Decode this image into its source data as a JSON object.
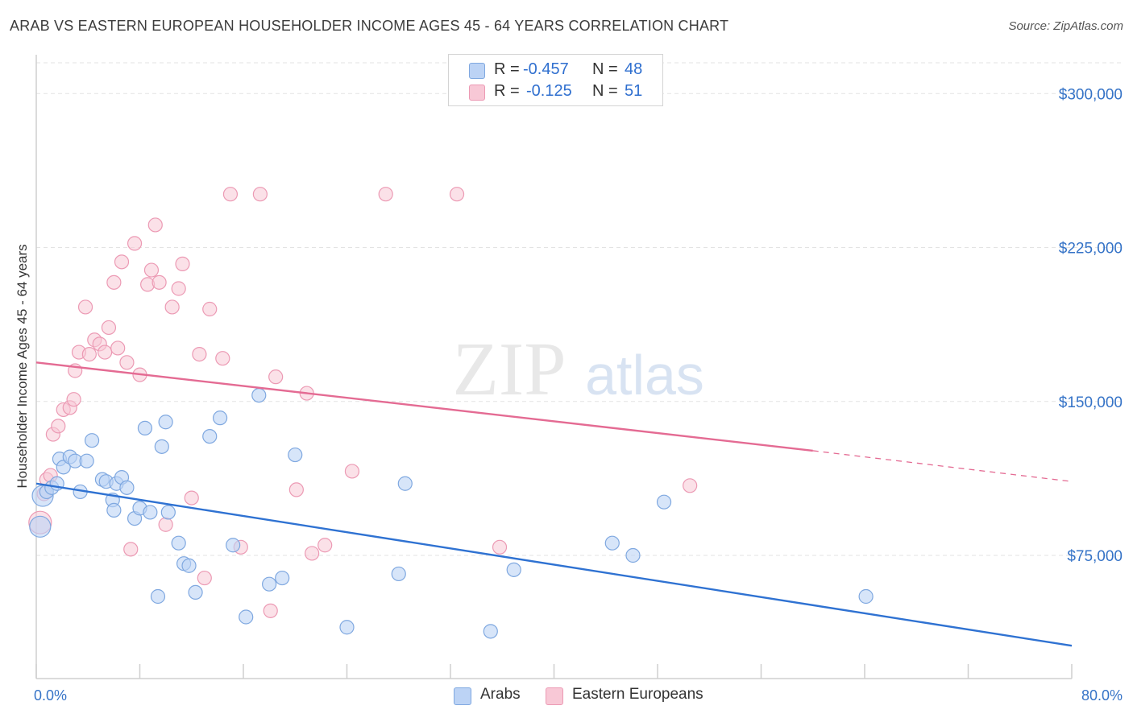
{
  "header": {
    "title": "ARAB VS EASTERN EUROPEAN HOUSEHOLDER INCOME AGES 45 - 64 YEARS CORRELATION CHART",
    "source": "Source: ZipAtlas.com"
  },
  "watermark": {
    "zip": "ZIP",
    "atlas": "atlas"
  },
  "legend": {
    "r_label": "R =",
    "n_label": "N =",
    "rows": [
      {
        "r": "-0.457",
        "n": "48"
      },
      {
        "r": "-0.125",
        "n": "51"
      }
    ]
  },
  "chart_data": {
    "type": "scatter",
    "title": "ARAB VS EASTERN EUROPEAN HOUSEHOLDER INCOME AGES 45 - 64 YEARS CORRELATION CHART",
    "xlabel": "",
    "ylabel": "Householder Income Ages 45 - 64 years",
    "xlim": [
      0,
      80
    ],
    "ylim": [
      15000,
      315000
    ],
    "x_tick_labels": [
      "0.0%",
      "80.0%"
    ],
    "y_ticks": [
      300000,
      225000,
      150000,
      75000
    ],
    "y_tick_labels": [
      "$300,000",
      "$225,000",
      "$150,000",
      "$75,000"
    ],
    "grid": true,
    "legend_position": "top-center",
    "colors": {
      "arabs_fill": "#bcd3f5",
      "arabs_stroke": "#7fa8e0",
      "arabs_line": "#2f72d2",
      "eastern_fill": "#f8c8d6",
      "eastern_stroke": "#ec9ab4",
      "eastern_line": "#e46b93",
      "tick_text": "#3573c7",
      "grid": "#e3e3e3"
    },
    "series": [
      {
        "name": "Arabs",
        "r": -0.457,
        "n": 48,
        "trend": {
          "x0": 0,
          "y0": 110000,
          "x1": 80,
          "y1": 31000
        },
        "points": [
          [
            0.3,
            89000
          ],
          [
            0.5,
            104000
          ],
          [
            0.8,
            106000
          ],
          [
            1.2,
            108000
          ],
          [
            1.6,
            110000
          ],
          [
            1.8,
            122000
          ],
          [
            2.1,
            118000
          ],
          [
            2.6,
            123000
          ],
          [
            3.0,
            121000
          ],
          [
            3.4,
            106000
          ],
          [
            3.9,
            121000
          ],
          [
            4.3,
            131000
          ],
          [
            5.1,
            112000
          ],
          [
            5.4,
            111000
          ],
          [
            5.9,
            102000
          ],
          [
            6.2,
            110000
          ],
          [
            6.6,
            113000
          ],
          [
            7.0,
            108000
          ],
          [
            7.6,
            93000
          ],
          [
            8.0,
            98000
          ],
          [
            8.4,
            137000
          ],
          [
            8.8,
            96000
          ],
          [
            9.4,
            55000
          ],
          [
            9.7,
            128000
          ],
          [
            10.2,
            96000
          ],
          [
            11.0,
            81000
          ],
          [
            11.4,
            71000
          ],
          [
            11.8,
            70000
          ],
          [
            12.3,
            57000
          ],
          [
            13.4,
            133000
          ],
          [
            14.2,
            142000
          ],
          [
            15.2,
            80000
          ],
          [
            16.2,
            45000
          ],
          [
            17.2,
            153000
          ],
          [
            18.0,
            61000
          ],
          [
            19.0,
            64000
          ],
          [
            20.0,
            124000
          ],
          [
            24.0,
            40000
          ],
          [
            28.0,
            66000
          ],
          [
            28.5,
            110000
          ],
          [
            35.1,
            38000
          ],
          [
            36.9,
            68000
          ],
          [
            44.5,
            81000
          ],
          [
            46.1,
            75000
          ],
          [
            48.5,
            101000
          ],
          [
            64.1,
            55000
          ],
          [
            10.0,
            140000
          ],
          [
            6.0,
            97000
          ]
        ]
      },
      {
        "name": "Eastern Europeans",
        "r": -0.125,
        "n": 51,
        "trend": {
          "x0": 0,
          "y0": 169000,
          "x1": 60,
          "y1": 126000,
          "dash_to_x": 80,
          "dash_to_y": 111000
        },
        "points": [
          [
            0.3,
            91000
          ],
          [
            0.8,
            112000
          ],
          [
            1.1,
            114000
          ],
          [
            1.3,
            134000
          ],
          [
            1.7,
            138000
          ],
          [
            2.1,
            146000
          ],
          [
            2.6,
            147000
          ],
          [
            2.9,
            151000
          ],
          [
            3.0,
            165000
          ],
          [
            3.3,
            174000
          ],
          [
            3.8,
            196000
          ],
          [
            4.1,
            173000
          ],
          [
            4.5,
            180000
          ],
          [
            4.9,
            178000
          ],
          [
            5.3,
            174000
          ],
          [
            5.6,
            186000
          ],
          [
            6.0,
            208000
          ],
          [
            6.3,
            176000
          ],
          [
            6.6,
            218000
          ],
          [
            7.0,
            169000
          ],
          [
            7.3,
            78000
          ],
          [
            7.6,
            227000
          ],
          [
            8.0,
            163000
          ],
          [
            8.6,
            207000
          ],
          [
            8.9,
            214000
          ],
          [
            9.2,
            236000
          ],
          [
            9.5,
            208000
          ],
          [
            10.0,
            90000
          ],
          [
            10.5,
            196000
          ],
          [
            11.0,
            205000
          ],
          [
            11.3,
            217000
          ],
          [
            12.0,
            103000
          ],
          [
            12.6,
            173000
          ],
          [
            13.0,
            64000
          ],
          [
            13.4,
            195000
          ],
          [
            14.4,
            171000
          ],
          [
            15.0,
            251000
          ],
          [
            15.8,
            79000
          ],
          [
            17.3,
            251000
          ],
          [
            18.1,
            48000
          ],
          [
            18.5,
            162000
          ],
          [
            20.1,
            107000
          ],
          [
            20.9,
            154000
          ],
          [
            21.3,
            76000
          ],
          [
            22.3,
            80000
          ],
          [
            24.4,
            116000
          ],
          [
            27.0,
            251000
          ],
          [
            32.5,
            251000
          ],
          [
            35.8,
            79000
          ],
          [
            50.5,
            109000
          ],
          [
            0.6,
            105000
          ]
        ]
      }
    ]
  },
  "bottom_legend": [
    {
      "label": "Arabs"
    },
    {
      "label": "Eastern Europeans"
    }
  ]
}
